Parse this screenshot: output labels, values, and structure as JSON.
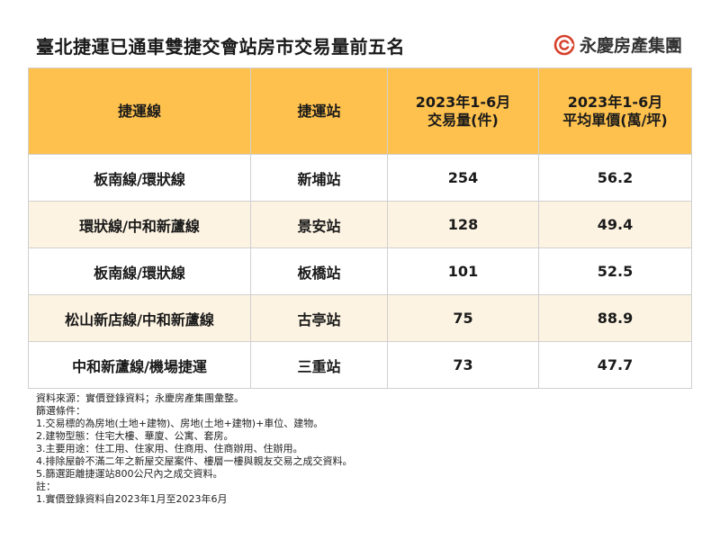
{
  "title": "臺北捷運已通車雙捷交會站房市交易量前五名",
  "brand": {
    "name": "永慶房產集團"
  },
  "table": {
    "headers": [
      {
        "line1": "捷運線",
        "line2": ""
      },
      {
        "line1": "捷運站",
        "line2": ""
      },
      {
        "line1": "2023年1-6月",
        "line2": "交易量(件)"
      },
      {
        "line1": "2023年1-6月",
        "line2": "平均單價(萬/坪)"
      }
    ],
    "rows": [
      {
        "line": "板南線/環狀線",
        "station": "新埔站",
        "volume": "254",
        "price": "56.2"
      },
      {
        "line": "環狀線/中和新蘆線",
        "station": "景安站",
        "volume": "128",
        "price": "49.4"
      },
      {
        "line": "板南線/環狀線",
        "station": "板橋站",
        "volume": "101",
        "price": "52.5"
      },
      {
        "line": "松山新店線/中和新蘆線",
        "station": "古亭站",
        "volume": "75",
        "price": "88.9"
      },
      {
        "line": "中和新蘆線/機場捷運",
        "station": "三重站",
        "volume": "73",
        "price": "47.7"
      }
    ]
  },
  "notes": [
    "資料來源：實價登錄資料；永慶房產集團彙整。",
    "篩選條件：",
    "1.交易標的為房地(土地+建物)、房地(土地+建物)+車位、建物。",
    "2.建物型態：住宅大樓、華廈、公寓、套房。",
    "3.主要用途：住工用、住家用、住商用、住商辦用、住辦用。",
    "4.排除屋齡不滿二年之新屋交屋案件、樓層一樓與親友交易之成交資料。",
    "5.篩選距離捷運站800公尺內之成交資料。",
    "註：",
    "1.實價登錄資料自2023年1月至2023年6月"
  ]
}
